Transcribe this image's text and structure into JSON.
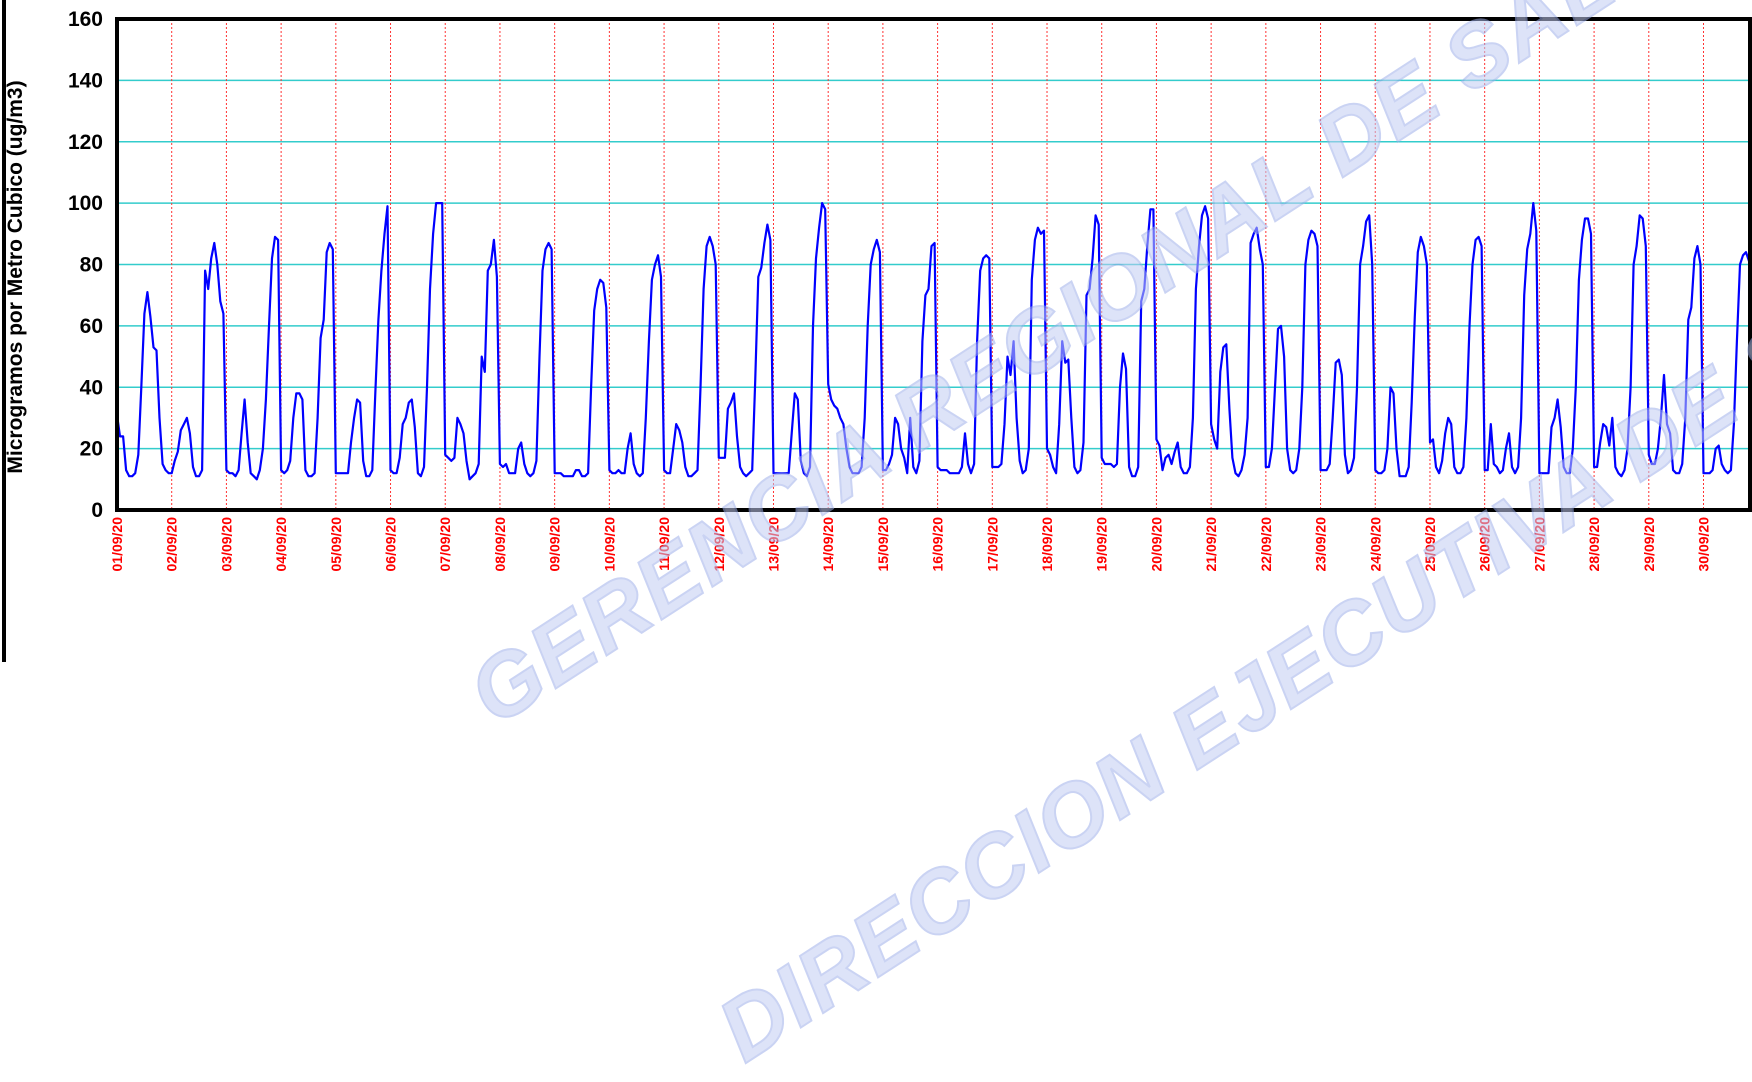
{
  "watermark": {
    "line1": "GERENCIA REGIONAL DE SALUD",
    "line2": "DIRECCION EJECUTIVA DE SALUD AMBIENTAL"
  },
  "chart_data": {
    "type": "line",
    "title": "",
    "xlabel": "",
    "ylabel": "Microgramos por Metro Cubico (ug/m3)",
    "ylim": [
      0,
      160
    ],
    "yticks": [
      0,
      20,
      40,
      60,
      80,
      100,
      120,
      140,
      160
    ],
    "xlim": [
      0,
      29.85
    ],
    "xticks": [
      "01/09/20",
      "02/09/20",
      "03/09/20",
      "04/09/20",
      "05/09/20",
      "06/09/20",
      "07/09/20",
      "08/09/20",
      "09/09/20",
      "10/09/20",
      "11/09/20",
      "12/09/20",
      "13/09/20",
      "14/09/20",
      "15/09/20",
      "16/09/20",
      "17/09/20",
      "18/09/20",
      "19/09/20",
      "20/09/20",
      "21/09/20",
      "22/09/20",
      "23/09/20",
      "24/09/20",
      "25/09/20",
      "26/09/20",
      "27/09/20",
      "28/09/20",
      "29/09/20",
      "30/09/20"
    ],
    "grid": {
      "horizontal": true,
      "vertical": true
    },
    "colors": {
      "line": "#0000ff",
      "hgrid": "#33cccc",
      "vgrid": "#ff3333",
      "ticklabels": "#ff0000"
    },
    "series": [
      {
        "values": [
          31,
          24,
          24,
          13,
          11,
          11,
          12,
          18,
          40,
          64,
          71,
          63,
          53,
          52,
          30,
          15,
          13,
          12,
          12,
          16,
          19,
          26,
          28,
          30,
          25,
          14,
          11,
          11,
          13,
          78,
          72,
          82,
          87,
          80,
          68,
          64,
          13,
          12,
          12,
          11,
          13,
          25,
          36,
          22,
          12,
          11,
          10,
          13,
          20,
          36,
          60,
          82,
          89,
          88,
          13,
          12,
          13,
          16,
          30,
          38,
          38,
          36,
          13,
          11,
          11,
          12,
          30,
          56,
          62,
          84,
          87,
          85,
          12,
          12,
          12,
          12,
          12,
          22,
          30,
          36,
          35,
          16,
          11,
          11,
          13,
          38,
          62,
          78,
          90,
          99,
          13,
          12,
          12,
          17,
          28,
          30,
          35,
          36,
          27,
          12,
          11,
          14,
          40,
          72,
          90,
          100,
          100,
          100,
          18,
          17,
          16,
          17,
          30,
          28,
          25,
          16,
          10,
          11,
          12,
          15,
          50,
          45,
          78,
          80,
          88,
          76,
          15,
          14,
          15,
          12,
          12,
          12,
          20,
          22,
          15,
          12,
          11,
          12,
          16,
          50,
          78,
          85,
          87,
          85,
          12,
          12,
          12,
          11,
          11,
          11,
          11,
          13,
          13,
          11,
          11,
          12,
          40,
          65,
          72,
          75,
          74,
          66,
          13,
          12,
          12,
          13,
          12,
          12,
          20,
          25,
          15,
          12,
          11,
          12,
          30,
          55,
          75,
          80,
          83,
          76,
          13,
          12,
          12,
          20,
          28,
          26,
          22,
          14,
          11,
          11,
          12,
          13,
          40,
          72,
          86,
          89,
          86,
          80,
          17,
          17,
          17,
          33,
          35,
          38,
          24,
          14,
          12,
          11,
          12,
          13,
          42,
          76,
          79,
          87,
          93,
          88,
          12,
          12,
          12,
          12,
          12,
          12,
          25,
          38,
          36,
          16,
          12,
          11,
          14,
          60,
          82,
          92,
          100,
          98,
          41,
          36,
          34,
          33,
          30,
          28,
          20,
          14,
          12,
          12,
          12,
          14,
          30,
          60,
          80,
          85,
          88,
          84,
          13,
          13,
          15,
          18,
          30,
          28,
          20,
          17,
          12,
          30,
          14,
          12,
          16,
          55,
          70,
          72,
          86,
          87,
          14,
          13,
          13,
          13,
          12,
          12,
          12,
          12,
          14,
          25,
          15,
          12,
          15,
          55,
          78,
          82,
          83,
          82,
          14,
          14,
          14,
          15,
          28,
          50,
          44,
          55,
          30,
          16,
          12,
          13,
          20,
          75,
          88,
          92,
          90,
          91,
          20,
          18,
          14,
          12,
          28,
          55,
          48,
          49,
          30,
          14,
          12,
          13,
          22,
          70,
          72,
          82,
          96,
          93,
          17,
          15,
          15,
          15,
          14,
          15,
          40,
          51,
          46,
          14,
          11,
          11,
          14,
          68,
          72,
          86,
          98,
          98,
          23,
          21,
          13,
          17,
          18,
          15,
          19,
          22,
          14,
          12,
          12,
          14,
          30,
          72,
          86,
          96,
          99,
          95,
          28,
          23,
          20,
          45,
          53,
          54,
          33,
          17,
          12,
          11,
          13,
          18,
          30,
          87,
          90,
          92,
          85,
          80,
          14,
          14,
          20,
          40,
          59,
          60,
          50,
          20,
          13,
          12,
          13,
          20,
          40,
          80,
          88,
          91,
          90,
          86,
          13,
          13,
          13,
          15,
          30,
          48,
          49,
          44,
          18,
          12,
          13,
          17,
          40,
          80,
          86,
          94,
          96,
          80,
          13,
          12,
          12,
          13,
          20,
          40,
          38,
          20,
          11,
          11,
          11,
          14,
          35,
          63,
          84,
          89,
          86,
          80,
          22,
          23,
          14,
          12,
          16,
          25,
          30,
          28,
          14,
          12,
          12,
          14,
          30,
          60,
          80,
          88,
          89,
          86,
          13,
          13,
          28,
          15,
          14,
          12,
          13,
          20,
          25,
          14,
          12,
          14,
          30,
          70,
          85,
          90,
          100,
          91,
          12,
          12,
          12,
          12,
          27,
          30,
          36,
          27,
          14,
          12,
          12,
          20,
          40,
          75,
          88,
          95,
          95,
          90,
          14,
          14,
          22,
          28,
          27,
          21,
          30,
          14,
          12,
          11,
          13,
          20,
          40,
          80,
          86,
          96,
          95,
          86,
          18,
          15,
          15,
          20,
          30,
          44,
          28,
          25,
          13,
          12,
          12,
          15,
          30,
          62,
          66,
          82,
          86,
          80,
          12,
          12,
          12,
          13,
          20,
          21,
          15,
          13,
          12,
          13,
          28,
          55,
          80,
          83,
          84,
          81,
          80,
          80,
          15,
          15
        ]
      }
    ]
  }
}
